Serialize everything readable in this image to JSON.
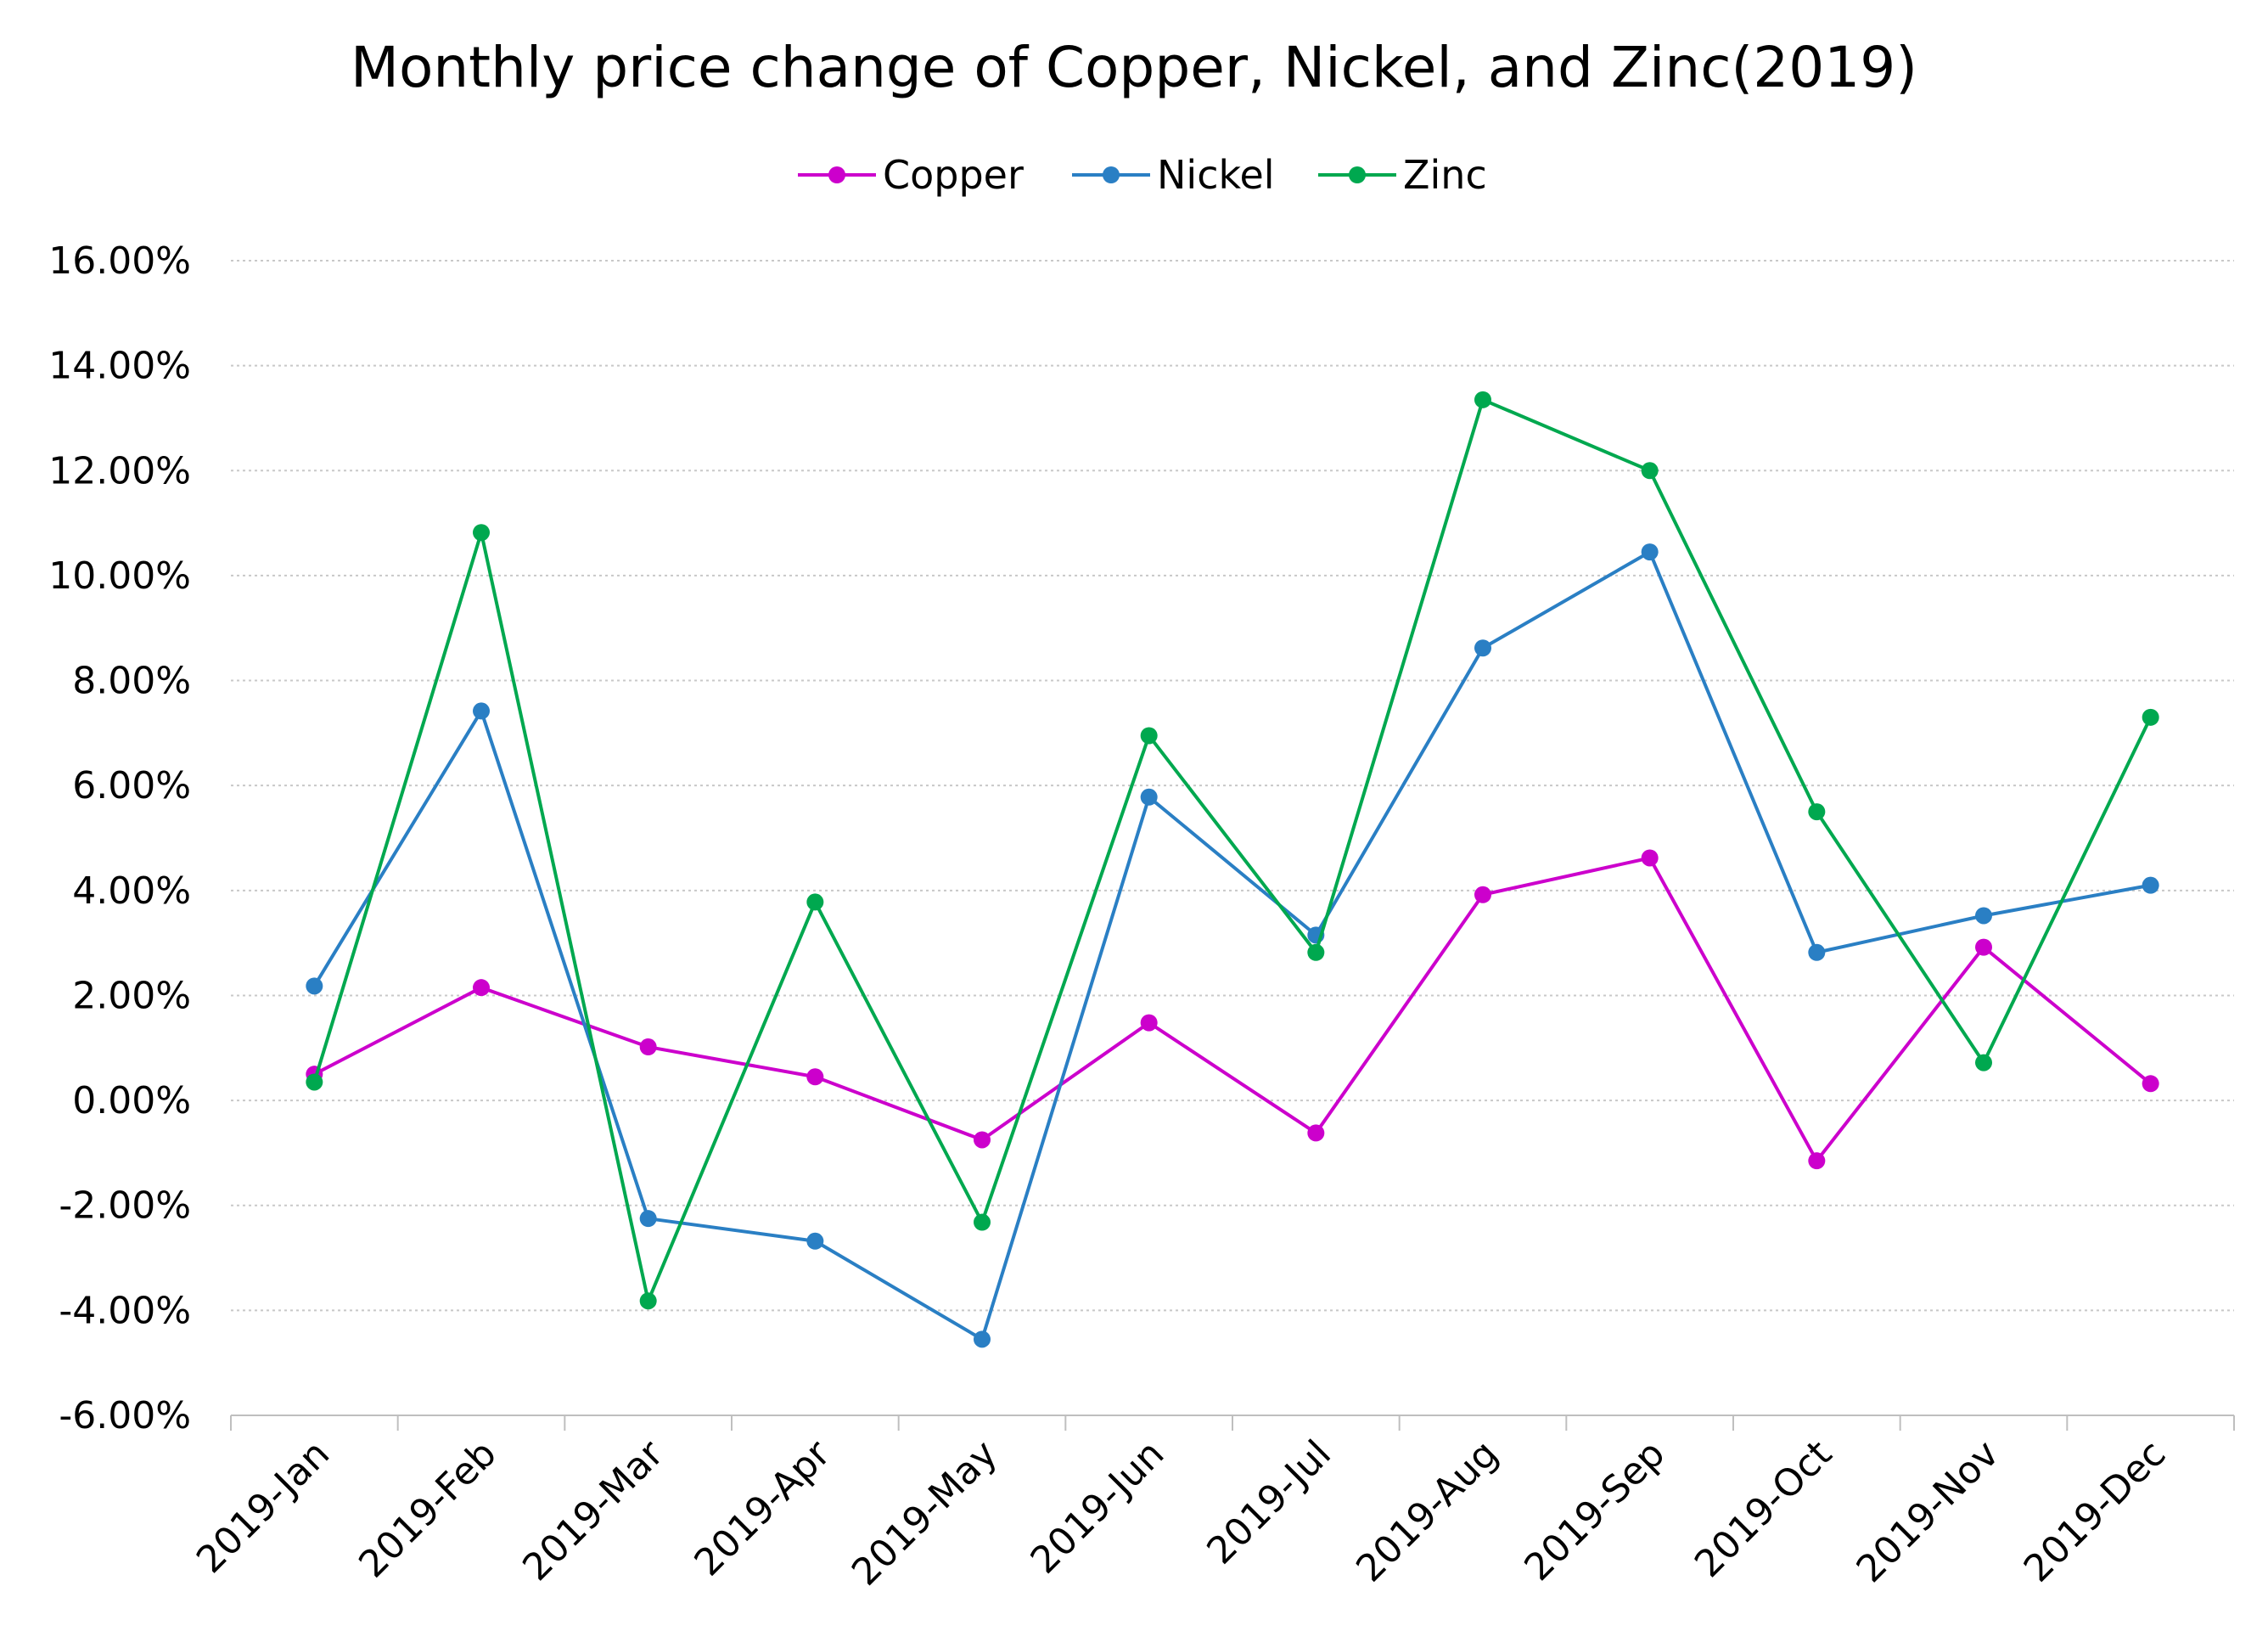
{
  "chart_data": {
    "type": "line",
    "title": "Monthly price change of Copper, Nickel, and Zinc(2019)",
    "xlabel": "",
    "ylabel": "",
    "categories": [
      "2019-Jan",
      "2019-Feb",
      "2019-Mar",
      "2019-Apr",
      "2019-May",
      "2019-Jun",
      "2019-Jul",
      "2019-Aug",
      "2019-Sep",
      "2019-Oct",
      "2019-Nov",
      "2019-Dec"
    ],
    "ylim": [
      -0.06,
      0.16
    ],
    "yticks": [
      -0.06,
      -0.04,
      -0.02,
      0,
      0.02,
      0.04,
      0.06,
      0.08,
      0.1,
      0.12,
      0.14,
      0.16
    ],
    "ytick_labels": [
      "-6.00%",
      "-4.00%",
      "-2.00%",
      "0.00%",
      "2.00%",
      "4.00%",
      "6.00%",
      "8.00%",
      "10.00%",
      "12.00%",
      "14.00%",
      "16.00%"
    ],
    "grid": true,
    "legend_position": "top-center",
    "series": [
      {
        "name": "Copper",
        "color": "#cc00cc",
        "values": [
          0.005,
          0.0215,
          0.0102,
          0.0045,
          -0.0075,
          0.0148,
          -0.0062,
          0.0392,
          0.0462,
          -0.0115,
          0.0292,
          0.0032
        ]
      },
      {
        "name": "Nickel",
        "color": "#2a7fc4",
        "values": [
          0.0218,
          0.0742,
          -0.0225,
          -0.0268,
          -0.0455,
          0.0578,
          0.0315,
          0.0862,
          0.1045,
          0.0282,
          0.0352,
          0.041
        ]
      },
      {
        "name": "Zinc",
        "color": "#00a84f",
        "values": [
          0.0035,
          0.1082,
          -0.0382,
          0.0378,
          -0.0232,
          0.0695,
          0.0282,
          0.1335,
          0.12,
          0.055,
          0.0072,
          0.073
        ]
      }
    ]
  }
}
